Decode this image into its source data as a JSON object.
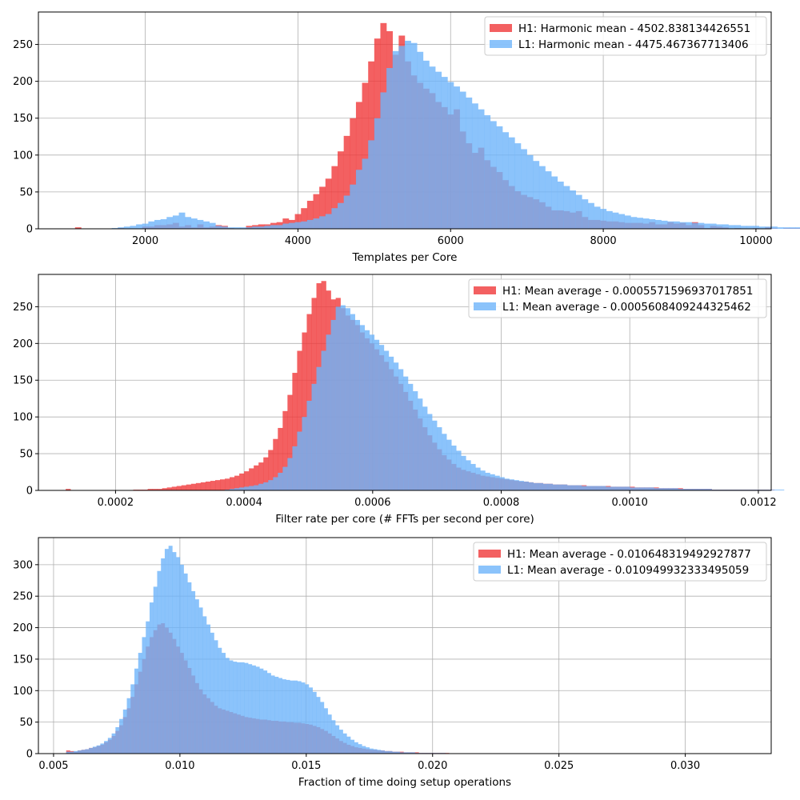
{
  "colors": {
    "h1": "#f0383a",
    "l1": "#6eb4fa",
    "grid": "#b0b0b0",
    "axis": "#000000"
  },
  "chart_data": [
    {
      "type": "histogram",
      "xlabel": "Templates per Core",
      "ylabel": "",
      "xlim": [
        600,
        10200
      ],
      "ylim": [
        0,
        294
      ],
      "xticks": [
        2000,
        4000,
        6000,
        8000,
        10000
      ],
      "xtick_labels": [
        "2000",
        "4000",
        "6000",
        "8000",
        "10000"
      ],
      "yticks": [
        0,
        50,
        100,
        150,
        200,
        250
      ],
      "ytick_labels": [
        "0",
        "50",
        "100",
        "150",
        "200",
        "250"
      ],
      "grid": true,
      "legend_position": "top-right",
      "bin_start": 1000,
      "bin_width": 80,
      "series": [
        {
          "name": "H1: Harmonic mean  - 4502.838134426551",
          "color_key": "h1",
          "values": [
            0,
            2,
            0,
            0,
            0,
            0,
            0,
            0,
            1,
            0,
            0,
            0,
            3,
            3,
            5,
            5,
            6,
            8,
            3,
            5,
            2,
            6,
            2,
            3,
            5,
            4,
            1,
            0,
            0,
            4,
            5,
            6,
            6,
            8,
            9,
            14,
            12,
            20,
            28,
            38,
            47,
            57,
            68,
            85,
            105,
            126,
            150,
            172,
            198,
            227,
            258,
            279,
            268,
            236,
            262,
            227,
            208,
            198,
            190,
            184,
            172,
            165,
            155,
            162,
            132,
            116,
            103,
            110,
            93,
            84,
            77,
            66,
            58,
            51,
            46,
            43,
            40,
            36,
            30,
            25,
            25,
            24,
            22,
            24,
            16,
            12,
            12,
            11,
            10,
            10,
            9,
            8,
            8,
            8,
            7,
            9,
            6,
            6,
            9,
            7,
            8,
            5,
            9,
            5,
            1,
            4,
            3,
            2,
            0,
            1,
            0,
            0,
            1,
            0,
            2,
            1,
            0,
            1,
            1,
            1,
            0,
            1,
            0,
            0,
            0,
            0,
            0,
            0,
            0,
            0,
            0,
            0,
            0,
            0,
            0,
            0,
            0,
            0,
            0,
            0
          ]
        },
        {
          "name": "L1: Harmonic mean  - 4475.467367713406",
          "color_key": "l1",
          "values": [
            0,
            0,
            0,
            0,
            0,
            0,
            0,
            1,
            2,
            3,
            4,
            6,
            7,
            10,
            12,
            13,
            16,
            18,
            22,
            16,
            14,
            12,
            10,
            8,
            4,
            3,
            2,
            2,
            2,
            2,
            3,
            3,
            4,
            5,
            5,
            7,
            8,
            9,
            10,
            12,
            14,
            17,
            20,
            28,
            35,
            45,
            60,
            80,
            95,
            120,
            150,
            185,
            218,
            241,
            248,
            255,
            252,
            240,
            228,
            220,
            213,
            206,
            199,
            193,
            186,
            178,
            170,
            162,
            154,
            146,
            139,
            131,
            124,
            116,
            108,
            100,
            92,
            85,
            78,
            71,
            64,
            58,
            52,
            46,
            40,
            35,
            30,
            27,
            24,
            22,
            20,
            18,
            16,
            15,
            14,
            13,
            12,
            11,
            10,
            10,
            9,
            9,
            8,
            8,
            7,
            7,
            6,
            6,
            5,
            5,
            4,
            4,
            4,
            3,
            3,
            3,
            2,
            2,
            2,
            2,
            2,
            1,
            1,
            1,
            1,
            1,
            1,
            1,
            1,
            1,
            0,
            0,
            0,
            0,
            0,
            0,
            0,
            0,
            0,
            0
          ]
        }
      ]
    },
    {
      "type": "histogram",
      "xlabel": "Filter rate per core (# FFTs per second per core)",
      "ylabel": "",
      "xlim": [
        8e-05,
        0.00122
      ],
      "ylim": [
        0,
        294
      ],
      "xticks": [
        0.0002,
        0.0004,
        0.0006,
        0.0008,
        0.001,
        0.0012
      ],
      "xtick_labels": [
        "0.0002",
        "0.0004",
        "0.0006",
        "0.0008",
        "0.0010",
        "0.0012"
      ],
      "yticks": [
        0,
        50,
        100,
        150,
        200,
        250
      ],
      "ytick_labels": [
        "0",
        "50",
        "100",
        "150",
        "200",
        "250"
      ],
      "grid": true,
      "legend_position": "top-right",
      "bin_start": 0.0001,
      "bin_width": 7.5e-06,
      "series": [
        {
          "name": "H1: Mean average - 0.0005571596937017851",
          "color_key": "h1",
          "values": [
            0,
            0,
            0,
            2,
            0,
            0,
            0,
            0,
            0,
            0,
            0,
            0,
            0,
            0,
            0,
            0,
            0,
            1,
            1,
            1,
            2,
            2,
            2,
            3,
            4,
            5,
            6,
            7,
            8,
            9,
            10,
            11,
            12,
            13,
            14,
            15,
            16,
            18,
            20,
            23,
            26,
            30,
            34,
            38,
            45,
            55,
            70,
            85,
            108,
            130,
            160,
            190,
            215,
            240,
            262,
            282,
            285,
            272,
            260,
            262,
            248,
            238,
            232,
            225,
            215,
            207,
            200,
            192,
            184,
            175,
            165,
            155,
            145,
            134,
            122,
            110,
            98,
            86,
            75,
            65,
            56,
            48,
            42,
            36,
            31,
            28,
            26,
            24,
            22,
            20,
            19,
            18,
            17,
            16,
            15,
            14,
            13,
            12,
            12,
            11,
            10,
            10,
            9,
            9,
            8,
            8,
            8,
            7,
            7,
            7,
            7,
            6,
            6,
            6,
            6,
            6,
            5,
            5,
            5,
            5,
            5,
            4,
            4,
            4,
            4,
            4,
            3,
            3,
            3,
            3,
            3,
            2,
            2,
            2,
            2,
            2,
            2,
            1,
            1,
            1,
            1,
            1,
            1,
            1,
            1,
            1,
            1,
            1,
            1,
            1,
            0,
            0,
            0,
            0,
            0,
            0,
            0,
            0,
            0,
            0,
            0,
            0,
            0,
            0,
            0,
            0,
            0
          ]
        },
        {
          "name": "L1: Mean average - 0.0005608409244325462",
          "color_key": "l1",
          "values": [
            0,
            0,
            0,
            0,
            0,
            0,
            0,
            0,
            0,
            0,
            0,
            0,
            0,
            0,
            0,
            0,
            0,
            0,
            0,
            0,
            0,
            0,
            0,
            0,
            0,
            0,
            0,
            0,
            0,
            0,
            0,
            0,
            0,
            0,
            0,
            0,
            1,
            2,
            3,
            4,
            5,
            6,
            7,
            9,
            11,
            14,
            18,
            24,
            32,
            44,
            60,
            80,
            100,
            122,
            145,
            168,
            190,
            212,
            232,
            250,
            252,
            248,
            240,
            232,
            225,
            218,
            212,
            205,
            198,
            190,
            182,
            174,
            165,
            155,
            145,
            135,
            125,
            114,
            104,
            95,
            86,
            77,
            69,
            61,
            54,
            47,
            41,
            36,
            31,
            27,
            24,
            22,
            20,
            18,
            16,
            15,
            14,
            13,
            12,
            11,
            10,
            10,
            9,
            9,
            8,
            8,
            8,
            7,
            7,
            7,
            6,
            6,
            6,
            6,
            6,
            5,
            5,
            5,
            5,
            5,
            4,
            4,
            4,
            4,
            4,
            3,
            3,
            3,
            3,
            3,
            2,
            2,
            2,
            2,
            2,
            2,
            2,
            1,
            1,
            1,
            1,
            1,
            1,
            1,
            1,
            1,
            1,
            1,
            1,
            1,
            1,
            1,
            0,
            0,
            0,
            0,
            0,
            0,
            0,
            0,
            0,
            0,
            0,
            0,
            0,
            0,
            0,
            0
          ]
        }
      ]
    },
    {
      "type": "histogram",
      "xlabel": "Fraction of time doing setup operations",
      "ylabel": "",
      "xlim": [
        0.0044,
        0.0334
      ],
      "ylim": [
        0,
        343
      ],
      "xticks": [
        0.005,
        0.01,
        0.015,
        0.02,
        0.025,
        0.03
      ],
      "xtick_labels": [
        "0.005",
        "0.010",
        "0.015",
        "0.020",
        "0.025",
        "0.030"
      ],
      "yticks": [
        0,
        50,
        100,
        150,
        200,
        250,
        300
      ],
      "ytick_labels": [
        "0",
        "50",
        "100",
        "150",
        "200",
        "250",
        "300"
      ],
      "grid": true,
      "legend_position": "top-right",
      "bin_start": 0.0055,
      "bin_width": 0.00015,
      "series": [
        {
          "name": "H1: Mean average - 0.010648319492927877",
          "color_key": "h1",
          "values": [
            5,
            4,
            3,
            5,
            6,
            7,
            9,
            10,
            12,
            14,
            18,
            22,
            28,
            36,
            45,
            58,
            72,
            90,
            110,
            130,
            150,
            170,
            185,
            196,
            205,
            207,
            200,
            192,
            182,
            170,
            160,
            148,
            136,
            124,
            112,
            102,
            94,
            88,
            82,
            76,
            72,
            70,
            68,
            66,
            64,
            62,
            60,
            58,
            57,
            56,
            55,
            54,
            54,
            53,
            52,
            52,
            51,
            51,
            50,
            50,
            49,
            49,
            48,
            47,
            46,
            44,
            42,
            39,
            36,
            32,
            28,
            24,
            20,
            17,
            14,
            12,
            10,
            9,
            8,
            7,
            6,
            6,
            5,
            5,
            4,
            4,
            3,
            3,
            3,
            2,
            2,
            2,
            2,
            1,
            1,
            1,
            1,
            1,
            1,
            1,
            1,
            0,
            0,
            0,
            0,
            0,
            0,
            0,
            0,
            0,
            0,
            0,
            0,
            0,
            0,
            0,
            0,
            0,
            0,
            0,
            0,
            0,
            0,
            0,
            0,
            0,
            0,
            0,
            0,
            0,
            0,
            0,
            0,
            0,
            0,
            0,
            0,
            0,
            0,
            0,
            0,
            0,
            0,
            0,
            0,
            0,
            0,
            0,
            0,
            0,
            0,
            0,
            0,
            0,
            0,
            0,
            0,
            0,
            0,
            0,
            0,
            0,
            0,
            0,
            0,
            0,
            0,
            0,
            0,
            0,
            0,
            0,
            0,
            0,
            0,
            0,
            0,
            0,
            0,
            0,
            0,
            0,
            0,
            0,
            0,
            0,
            0,
            0
          ]
        },
        {
          "name": "L1: Mean average - 0.010949932333495059",
          "color_key": "l1",
          "values": [
            3,
            3,
            4,
            5,
            6,
            7,
            9,
            11,
            13,
            16,
            20,
            25,
            32,
            42,
            55,
            70,
            88,
            110,
            135,
            160,
            185,
            210,
            240,
            265,
            290,
            310,
            325,
            330,
            320,
            312,
            300,
            286,
            272,
            258,
            245,
            232,
            218,
            205,
            192,
            180,
            168,
            160,
            152,
            148,
            146,
            145,
            145,
            144,
            142,
            140,
            138,
            135,
            132,
            128,
            124,
            122,
            120,
            118,
            117,
            116,
            116,
            115,
            113,
            110,
            105,
            98,
            90,
            82,
            72,
            62,
            53,
            45,
            38,
            32,
            27,
            22,
            18,
            15,
            12,
            10,
            8,
            7,
            6,
            5,
            4,
            4,
            3,
            3,
            2,
            2,
            2,
            2,
            1,
            1,
            1,
            1,
            1,
            1,
            1,
            1,
            0,
            0,
            0,
            0,
            0,
            0,
            0,
            0,
            0,
            0,
            0,
            0,
            0,
            0,
            0,
            0,
            0,
            0,
            0,
            0,
            0,
            0,
            0,
            0,
            0,
            0,
            0,
            0,
            0,
            0,
            0,
            0,
            0,
            0,
            0,
            0,
            0,
            0,
            0,
            0,
            0,
            0,
            0,
            0,
            0,
            0,
            0,
            0,
            0,
            0,
            0,
            0,
            0,
            0,
            0,
            0,
            0,
            0,
            0,
            0,
            0,
            0,
            0,
            0,
            0,
            0,
            0,
            0,
            0,
            0,
            0,
            0,
            0,
            0,
            0,
            0,
            0,
            0,
            0,
            0,
            0,
            0,
            0
          ]
        }
      ]
    }
  ]
}
